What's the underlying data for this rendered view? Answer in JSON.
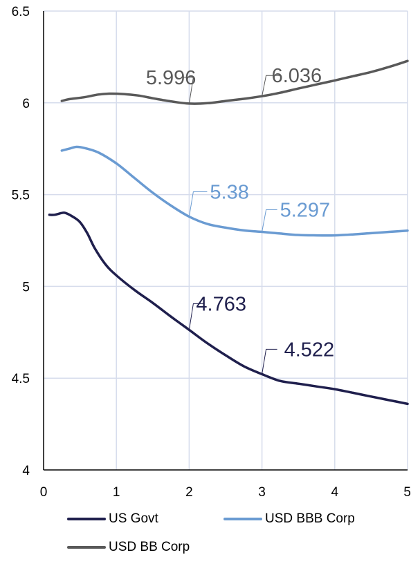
{
  "chart_data": {
    "type": "line",
    "title": "",
    "xlabel": "",
    "ylabel": "",
    "xlim": [
      0,
      5
    ],
    "ylim": [
      4,
      6.5
    ],
    "x_ticks": [
      0,
      1,
      2,
      3,
      4,
      5
    ],
    "y_ticks": [
      4,
      4.5,
      5,
      5.5,
      6,
      6.5
    ],
    "x_tick_labels": [
      "0",
      "1",
      "2",
      "3",
      "4",
      "5"
    ],
    "y_tick_labels": [
      "4",
      "4.5",
      "5",
      "5.5",
      "6",
      "6.5"
    ],
    "grid": true,
    "legend_position": "bottom",
    "series": [
      {
        "name": "US Govt",
        "color": "#1f1f4d",
        "points": [
          [
            0.08,
            5.39
          ],
          [
            0.15,
            5.39
          ],
          [
            0.25,
            5.4
          ],
          [
            0.3,
            5.4
          ],
          [
            0.4,
            5.38
          ],
          [
            0.5,
            5.35
          ],
          [
            0.6,
            5.29
          ],
          [
            0.7,
            5.21
          ],
          [
            0.85,
            5.12
          ],
          [
            1.0,
            5.06
          ],
          [
            1.25,
            4.98
          ],
          [
            1.5,
            4.91
          ],
          [
            1.75,
            4.835
          ],
          [
            2.0,
            4.763
          ],
          [
            2.25,
            4.69
          ],
          [
            2.5,
            4.625
          ],
          [
            2.75,
            4.565
          ],
          [
            3.0,
            4.522
          ],
          [
            3.25,
            4.485
          ],
          [
            3.5,
            4.47
          ],
          [
            3.75,
            4.455
          ],
          [
            4.0,
            4.44
          ],
          [
            4.25,
            4.42
          ],
          [
            4.5,
            4.4
          ],
          [
            4.75,
            4.38
          ],
          [
            5.0,
            4.36
          ]
        ],
        "labels": [
          {
            "x": 2,
            "y": 4.763,
            "text": "4.763"
          },
          {
            "x": 3,
            "y": 4.522,
            "text": "4.522"
          }
        ]
      },
      {
        "name": "USD BBB Corp",
        "color": "#6a9bd2",
        "points": [
          [
            0.25,
            5.74
          ],
          [
            0.35,
            5.75
          ],
          [
            0.45,
            5.76
          ],
          [
            0.55,
            5.755
          ],
          [
            0.75,
            5.73
          ],
          [
            1.0,
            5.67
          ],
          [
            1.25,
            5.59
          ],
          [
            1.5,
            5.51
          ],
          [
            1.75,
            5.44
          ],
          [
            2.0,
            5.38
          ],
          [
            2.25,
            5.34
          ],
          [
            2.5,
            5.32
          ],
          [
            2.75,
            5.305
          ],
          [
            3.0,
            5.297
          ],
          [
            3.25,
            5.288
          ],
          [
            3.5,
            5.28
          ],
          [
            3.75,
            5.278
          ],
          [
            4.0,
            5.278
          ],
          [
            4.25,
            5.283
          ],
          [
            4.5,
            5.29
          ],
          [
            4.75,
            5.297
          ],
          [
            5.0,
            5.304
          ]
        ],
        "labels": [
          {
            "x": 2,
            "y": 5.38,
            "text": "5.38"
          },
          {
            "x": 3,
            "y": 5.297,
            "text": "5.297"
          }
        ]
      },
      {
        "name": "USD BB Corp",
        "color": "#595959",
        "points": [
          [
            0.25,
            6.01
          ],
          [
            0.35,
            6.02
          ],
          [
            0.55,
            6.03
          ],
          [
            0.75,
            6.045
          ],
          [
            0.9,
            6.05
          ],
          [
            1.1,
            6.048
          ],
          [
            1.3,
            6.04
          ],
          [
            1.5,
            6.025
          ],
          [
            1.75,
            6.008
          ],
          [
            2.0,
            5.996
          ],
          [
            2.25,
            5.998
          ],
          [
            2.5,
            6.01
          ],
          [
            2.75,
            6.022
          ],
          [
            3.0,
            6.036
          ],
          [
            3.25,
            6.055
          ],
          [
            3.5,
            6.078
          ],
          [
            3.75,
            6.1
          ],
          [
            4.0,
            6.122
          ],
          [
            4.25,
            6.145
          ],
          [
            4.5,
            6.168
          ],
          [
            4.75,
            6.196
          ],
          [
            5.0,
            6.228
          ]
        ],
        "labels": [
          {
            "x": 2,
            "y": 5.996,
            "text": "5.996"
          },
          {
            "x": 3,
            "y": 6.036,
            "text": "6.036"
          }
        ]
      }
    ]
  }
}
